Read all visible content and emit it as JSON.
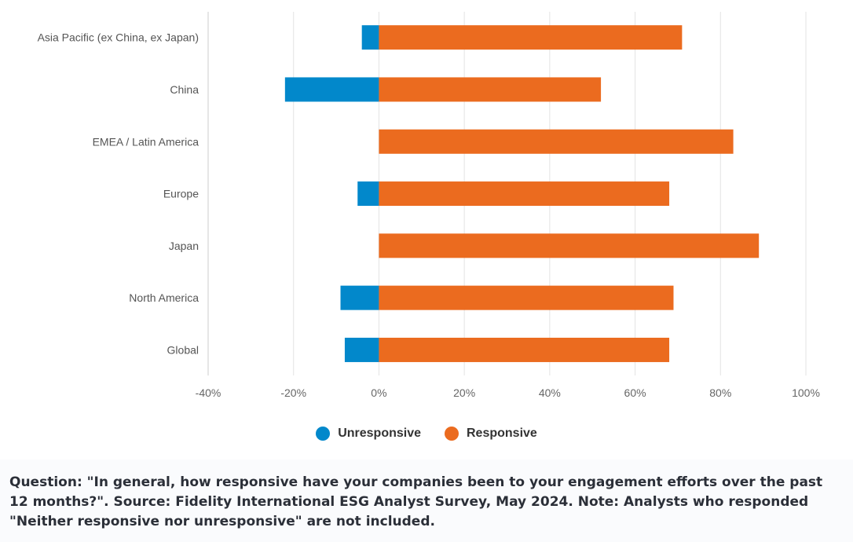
{
  "chart_data": {
    "type": "bar",
    "orientation": "horizontal",
    "stacked": true,
    "categories": [
      "Asia Pacific (ex China, ex Japan)",
      "China",
      "EMEA / Latin America",
      "Europe",
      "Japan",
      "North America",
      "Global"
    ],
    "series": [
      {
        "name": "Unresponsive",
        "color": "#0288cb",
        "values": [
          -4,
          -22,
          0,
          -5,
          0,
          -9,
          -8
        ]
      },
      {
        "name": "Responsive",
        "color": "#eb6b1f",
        "values": [
          71,
          52,
          83,
          68,
          89,
          69,
          68
        ]
      }
    ],
    "x_ticks": [
      "-40%",
      "-20%",
      "0%",
      "20%",
      "40%",
      "60%",
      "80%",
      "100%"
    ],
    "xlim": [
      -40,
      100
    ],
    "grid": true,
    "legend_position": "bottom"
  },
  "legend": {
    "items": [
      {
        "label": "Unresponsive",
        "color": "#0288cb"
      },
      {
        "label": "Responsive",
        "color": "#eb6b1f"
      }
    ]
  },
  "footer": {
    "note": "Question: \"In general, how responsive have your companies been to your engagement efforts over the past 12 months?\". Source: Fidelity International ESG Analyst Survey, May 2024. Note: Analysts who responded \"Neither responsive nor unresponsive\" are not included."
  }
}
